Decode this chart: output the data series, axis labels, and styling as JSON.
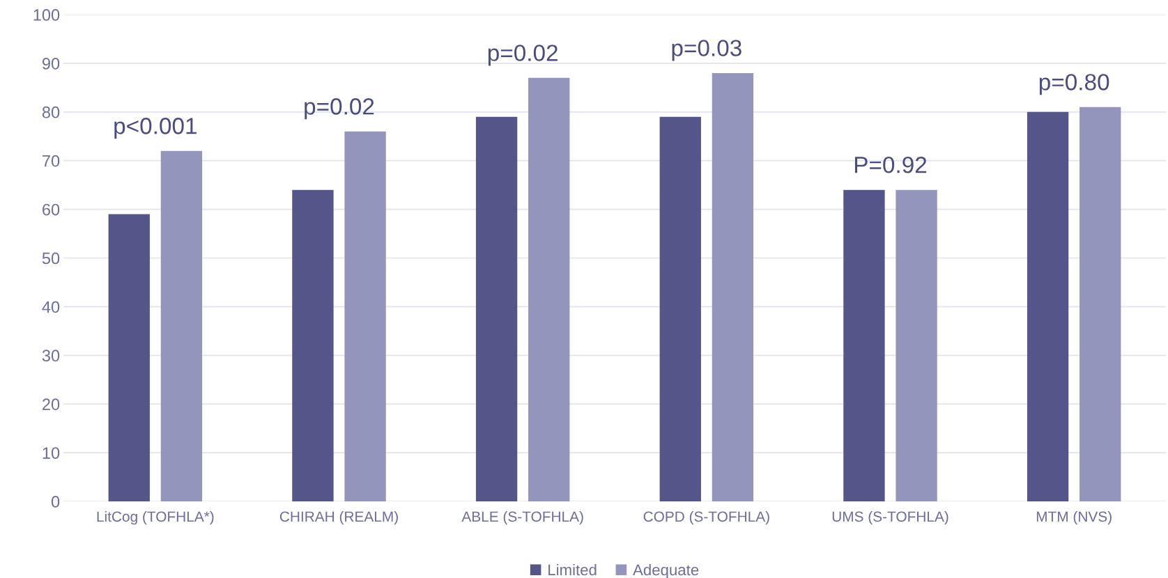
{
  "chart_data": {
    "type": "bar",
    "categories": [
      "LitCog (TOFHLA*)",
      "CHIRAH (REALM)",
      "ABLE (S-TOFHLA)",
      "COPD (S-TOFHLA)",
      "UMS (S-TOFHLA)",
      "MTM (NVS)"
    ],
    "series": [
      {
        "name": "Limited",
        "color": "#54568a",
        "values": [
          59,
          64,
          79,
          79,
          64,
          80
        ]
      },
      {
        "name": "Adequate",
        "color": "#9395bd",
        "values": [
          72,
          76,
          87,
          88,
          64,
          81
        ]
      }
    ],
    "ylim": [
      0,
      100
    ],
    "yticks": [
      0,
      10,
      20,
      30,
      40,
      50,
      60,
      70,
      80,
      90,
      100
    ],
    "grid": "y",
    "legend": "bottom",
    "annotations": [
      "p<0.001",
      "p=0.02",
      "p=0.02",
      "p=0.03",
      "P=0.92",
      "p=0.80"
    ]
  }
}
